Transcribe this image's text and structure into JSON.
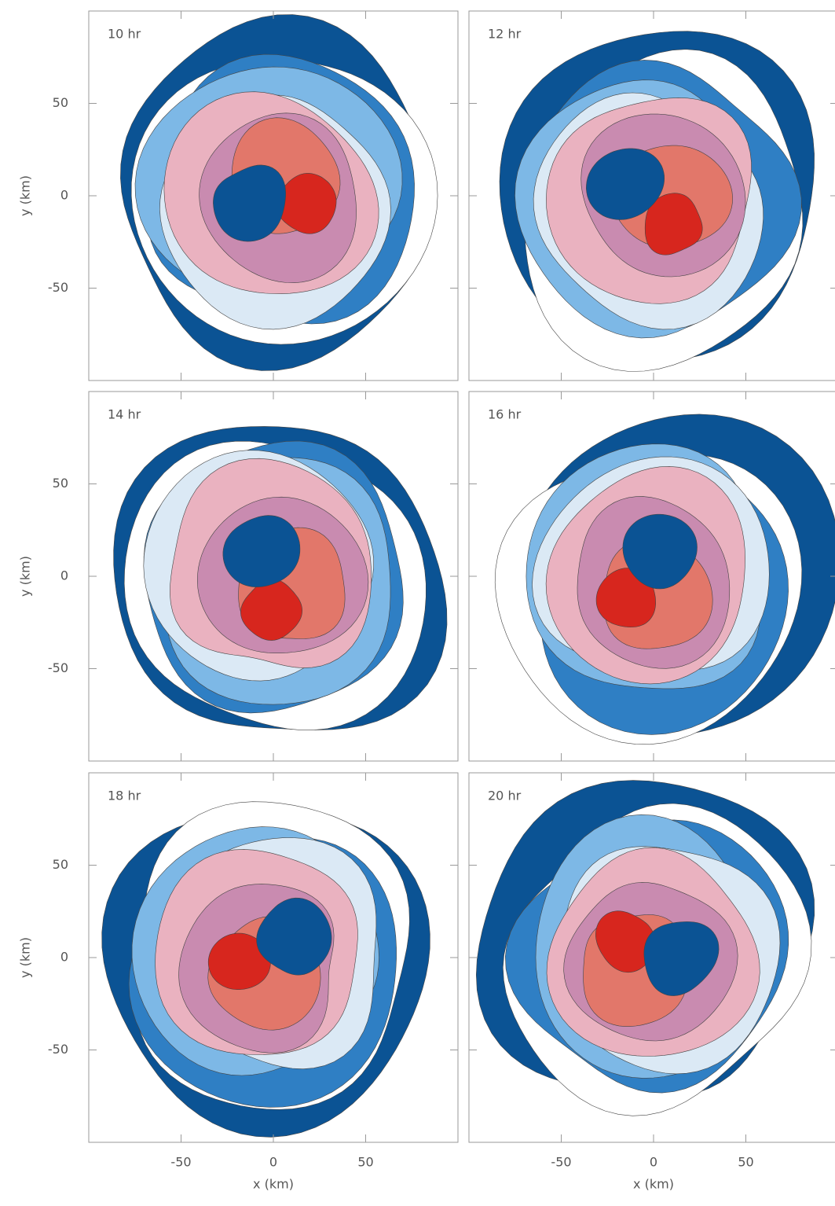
{
  "chart_data": [
    {
      "type": "contour",
      "title": "10 hr",
      "xlim": [
        -100,
        100
      ],
      "ylim": [
        -100,
        100
      ],
      "xticks": [
        -50,
        0,
        50
      ],
      "yticks": [
        -50,
        0,
        50
      ],
      "ylabel": "y (km)"
    },
    {
      "type": "contour",
      "title": "12 hr",
      "xlim": [
        -100,
        100
      ],
      "ylim": [
        -100,
        100
      ],
      "xticks": [
        -50,
        0,
        50
      ],
      "yticks": [
        -50,
        0,
        50
      ]
    },
    {
      "type": "contour",
      "title": "14 hr",
      "xlim": [
        -100,
        100
      ],
      "ylim": [
        -100,
        100
      ],
      "xticks": [
        -50,
        0,
        50
      ],
      "yticks": [
        -50,
        0,
        50
      ],
      "ylabel": "y (km)"
    },
    {
      "type": "contour",
      "title": "16 hr",
      "xlim": [
        -100,
        100
      ],
      "ylim": [
        -100,
        100
      ],
      "xticks": [
        -50,
        0,
        50
      ],
      "yticks": [
        -50,
        0,
        50
      ]
    },
    {
      "type": "contour",
      "title": "18 hr",
      "xlim": [
        -100,
        100
      ],
      "ylim": [
        -100,
        100
      ],
      "xticks": [
        -50,
        0,
        50
      ],
      "yticks": [
        -50,
        0,
        50
      ],
      "ylabel": "y (km)",
      "xlabel": "x (km)"
    },
    {
      "type": "contour",
      "title": "20 hr",
      "xlim": [
        -100,
        100
      ],
      "ylim": [
        -100,
        100
      ],
      "xticks": [
        -50,
        0,
        50
      ],
      "yticks": [
        -50,
        0,
        50
      ],
      "xlabel": "x (km)"
    }
  ]
}
